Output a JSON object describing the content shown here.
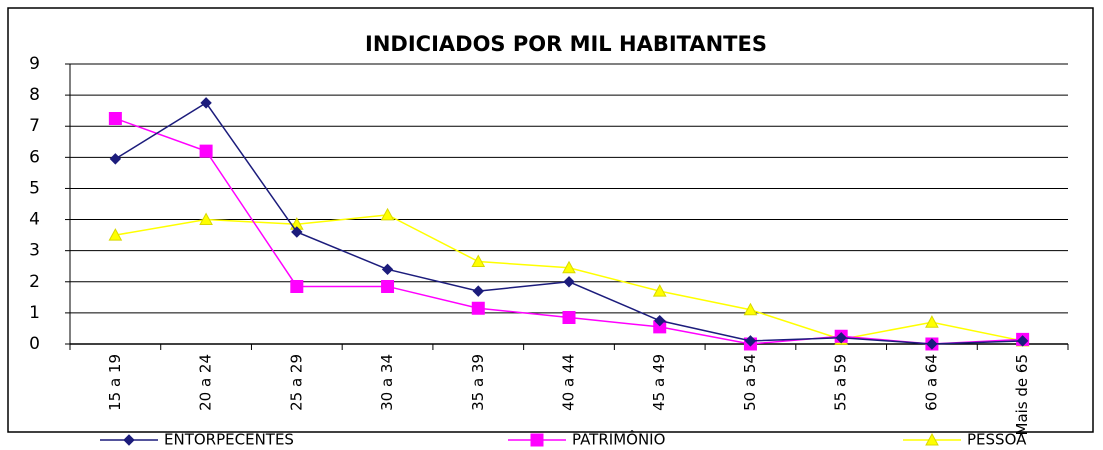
{
  "chart_data": {
    "type": "line",
    "title": "INDICIADOS POR MIL HABITANTES",
    "categories": [
      "15 a 19",
      "20 a 24",
      "25 a 29",
      "30 a 34",
      "35 a 39",
      "40 a 44",
      "45 a 49",
      "50 a 54",
      "55 a 59",
      "60 a 64",
      "Mais de 65"
    ],
    "series": [
      {
        "name": "ENTORPECENTES",
        "color": "#1c1c7c",
        "marker": "diamond",
        "values": [
          5.95,
          7.75,
          3.6,
          2.4,
          1.7,
          2.0,
          0.75,
          0.1,
          0.2,
          0.0,
          0.1
        ]
      },
      {
        "name": "PATRIMÔNIO",
        "color": "#ff00ff",
        "marker": "square",
        "values": [
          7.25,
          6.2,
          1.85,
          1.85,
          1.15,
          0.85,
          0.55,
          0.0,
          0.25,
          0.0,
          0.15
        ]
      },
      {
        "name": "PESSOA",
        "color": "#ffff00",
        "marker": "triangle",
        "values": [
          3.5,
          4.0,
          3.85,
          4.15,
          2.65,
          2.45,
          1.7,
          1.1,
          0.15,
          0.7,
          0.1
        ]
      }
    ],
    "ylim": [
      0,
      9
    ],
    "yticks": [
      0,
      1,
      2,
      3,
      4,
      5,
      6,
      7,
      8,
      9
    ],
    "grid": true,
    "legend": "bottom"
  }
}
